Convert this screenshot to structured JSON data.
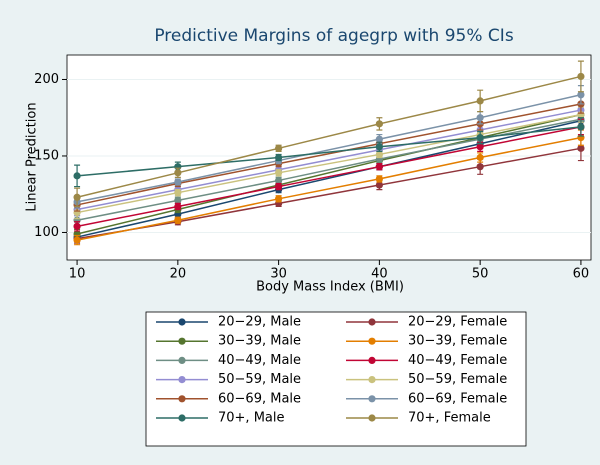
{
  "chart_data": {
    "type": "line",
    "title": "Predictive Margins of agegrp with 95% CIs",
    "x_label": "Body Mass Index (BMI)",
    "y_label": "Linear Prediction",
    "x": [
      10,
      20,
      30,
      40,
      50,
      60
    ],
    "xlim": [
      9,
      61
    ],
    "xticks": [
      10,
      20,
      30,
      40,
      50,
      60
    ],
    "ylim": [
      82,
      216
    ],
    "yticks": [
      100,
      150,
      200
    ],
    "grid": true,
    "series": [
      {
        "name": "20−29, Male",
        "color": "#1a476f",
        "values": [
          97,
          112,
          128,
          143,
          158,
          173
        ],
        "errors": [
          3,
          2,
          2,
          2,
          3,
          4
        ]
      },
      {
        "name": "20−29, Female",
        "color": "#90353b",
        "values": [
          96,
          107,
          119,
          131,
          143,
          155
        ],
        "errors": [
          3,
          2,
          2,
          3,
          5,
          8
        ]
      },
      {
        "name": "30−39, Male",
        "color": "#55752f",
        "values": [
          99,
          115,
          131,
          147,
          162,
          177
        ],
        "errors": [
          3,
          2,
          2,
          2,
          3,
          4
        ]
      },
      {
        "name": "30−39, Female",
        "color": "#e37e00",
        "values": [
          95,
          108,
          122,
          135,
          149,
          162
        ],
        "errors": [
          3,
          2,
          2,
          2,
          3,
          5
        ]
      },
      {
        "name": "40−49, Male",
        "color": "#6e8e84",
        "values": [
          108,
          121,
          134,
          148,
          161,
          174
        ],
        "errors": [
          3,
          2,
          2,
          2,
          3,
          4
        ]
      },
      {
        "name": "40−49, Female",
        "color": "#c10534",
        "values": [
          104,
          117,
          130,
          143,
          156,
          169
        ],
        "errors": [
          3,
          2,
          2,
          2,
          3,
          5
        ]
      },
      {
        "name": "50−59, Male",
        "color": "#938dd2",
        "values": [
          115,
          128,
          141,
          154,
          167,
          180
        ],
        "errors": [
          4,
          2,
          2,
          2,
          3,
          5
        ]
      },
      {
        "name": "50−59, Female",
        "color": "#cac27e",
        "values": [
          113,
          126,
          139,
          151,
          164,
          177
        ],
        "errors": [
          4,
          2,
          2,
          2,
          3,
          5
        ]
      },
      {
        "name": "60−69, Male",
        "color": "#a0522d",
        "values": [
          118,
          132,
          145,
          158,
          171,
          184
        ],
        "errors": [
          4,
          2,
          2,
          2,
          4,
          6
        ]
      },
      {
        "name": "60−69, Female",
        "color": "#7b92a8",
        "values": [
          120,
          133,
          147,
          161,
          175,
          190
        ],
        "errors": [
          4,
          2,
          2,
          3,
          4,
          6
        ]
      },
      {
        "name": "70+, Male",
        "color": "#2d6d66",
        "values": [
          137,
          143,
          149,
          156,
          162,
          169
        ],
        "errors": [
          7,
          3,
          2,
          3,
          4,
          6
        ]
      },
      {
        "name": "70+, Female",
        "color": "#9c8847",
        "values": [
          123,
          139,
          155,
          171,
          186,
          202
        ],
        "errors": [
          6,
          3,
          2,
          4,
          7,
          10
        ]
      }
    ]
  }
}
